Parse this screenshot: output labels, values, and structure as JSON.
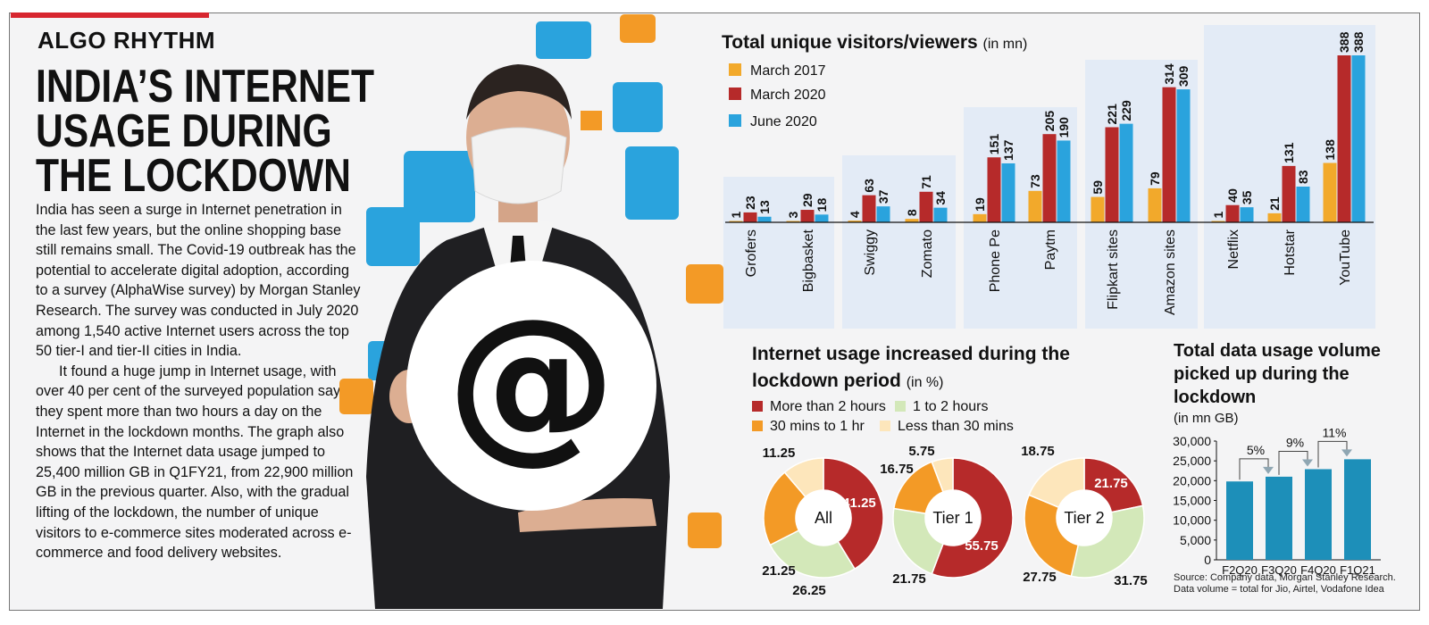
{
  "kicker": "ALGO RHYTHM",
  "headline": [
    "INDIA’S INTERNET",
    "USAGE DURING",
    "THE LOCKDOWN"
  ],
  "story": {
    "p1": "India has seen a surge in Internet penetration in the last few years, but the online shopping base still remains small. The Covid-19 outbreak has the potential to accelerate digital adoption, according to a survey (AlphaWise survey) by Morgan Stanley Research. The survey was conducted in July 2020 among 1,540 active Internet users across the top 50 tier-I and tier-II cities in India.",
    "p2": "It found a huge jump in Internet usage, with over 40 per cent of the surveyed population saying they spent more than two hours a day on the Internet in the lockdown months. The graph also shows that the Internet data usage jumped to 25,400 million GB in Q1FY21, from 22,900 million GB in the previous quarter. Also, with the gradual lifting of the lockdown, the number of unique visitors to e-commerce sites moderated across e-commerce and food delivery websites."
  },
  "colors": {
    "march2017": "#f2a92b",
    "march2020": "#b62a2a",
    "june2020": "#2aa3dd",
    "more_than_2h": "#b62a2a",
    "one_to_2h": "#d3e8b9",
    "thirty_to_1h": "#f39a26",
    "less_than_30": "#fde6bb",
    "usage_bar": "#1d8fb9",
    "band": "#e3ebf6"
  },
  "chart_data": [
    {
      "type": "bar",
      "title": "Total unique visitors/viewers",
      "unit": "(in mn)",
      "categories": [
        "Grofers",
        "Bigbasket",
        "Swiggy",
        "Zomato",
        "Phone Pe",
        "Paytm",
        "Flipkart sites",
        "Amazon sites",
        "Netflix",
        "Hotstar",
        "YouTube"
      ],
      "groups": [
        [
          "Grofers",
          "Bigbasket"
        ],
        [
          "Swiggy",
          "Zomato"
        ],
        [
          "Phone Pe",
          "Paytm"
        ],
        [
          "Flipkart sites",
          "Amazon sites"
        ],
        [
          "Netflix",
          "Hotstar",
          "YouTube"
        ]
      ],
      "series": [
        {
          "name": "March 2017",
          "values": [
            1,
            3,
            4,
            8,
            19,
            73,
            59,
            79,
            1,
            21,
            138
          ]
        },
        {
          "name": "March 2020",
          "values": [
            23,
            29,
            63,
            71,
            151,
            205,
            221,
            314,
            40,
            131,
            388
          ]
        },
        {
          "name": "June 2020",
          "values": [
            13,
            18,
            37,
            34,
            137,
            190,
            229,
            309,
            35,
            83,
            388
          ]
        }
      ],
      "ylim": [
        0,
        388
      ],
      "grid": false,
      "legend": "top-left"
    },
    {
      "type": "pie",
      "title": "Internet usage increased during the lockdown period",
      "unit": "(in %)",
      "categories": [
        "More than 2 hours",
        "1 to 2 hours",
        "30 mins to 1 hr",
        "Less than 30 mins"
      ],
      "donuts": [
        {
          "name": "All",
          "values": [
            41.25,
            26.25,
            21.25,
            11.25
          ],
          "labels": [
            "41.25",
            "26.25",
            "21.25",
            "11.25"
          ]
        },
        {
          "name": "Tier 1",
          "values": [
            55.75,
            21.75,
            16.75,
            5.75
          ],
          "labels": [
            "55.75",
            "21.75",
            "16.75",
            "5.75"
          ]
        },
        {
          "name": "Tier 2",
          "values": [
            21.75,
            31.75,
            27.75,
            18.75
          ],
          "labels": [
            "21.75",
            "31.75",
            "27.75",
            "18.75"
          ]
        }
      ],
      "legend": "top"
    },
    {
      "type": "bar",
      "title": "Total data usage volume picked up during the lockdown",
      "unit": "(in mn GB)",
      "categories": [
        "F2Q20",
        "F3Q20",
        "F4Q20",
        "F1Q21"
      ],
      "values": [
        19800,
        21000,
        22900,
        25400
      ],
      "ylim": [
        0,
        30000
      ],
      "yticks": [
        "0",
        "5,000",
        "10,000",
        "15,000",
        "20,000",
        "25,000",
        "30,000"
      ],
      "annotations": [
        "5%",
        "9%",
        "11%"
      ],
      "source": [
        "Source: Company data, Morgan Stanley Research.",
        "Data volume = total for Jio, Airtel, Vodafone Idea"
      ]
    }
  ]
}
